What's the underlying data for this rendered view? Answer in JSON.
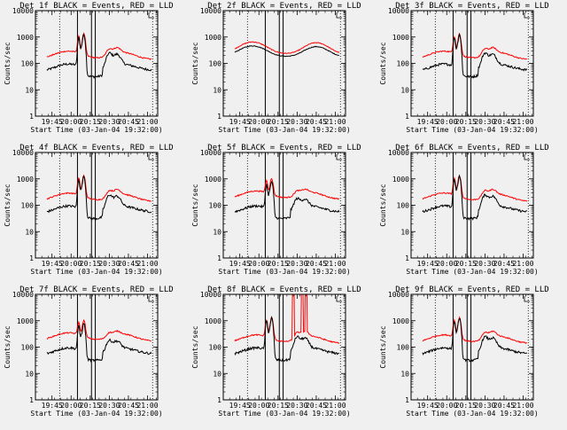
{
  "chart_data": {
    "type": "line",
    "layout": "3x3 grid",
    "x_ticks": [
      "19:45",
      "20:00",
      "20:15",
      "20:30",
      "20:45",
      "21:00"
    ],
    "x_range": [
      "19:32",
      "21:08"
    ],
    "xlabel": "Start Time (03-Jan-04 19:32:00)",
    "ylabel": "Counts/sec",
    "y_scale": "log",
    "y_range": [
      1,
      10000
    ],
    "y_ticks": [
      "1",
      "10",
      "100",
      "1000",
      "10000"
    ],
    "series_colors": {
      "events": "#000000",
      "lld": "#ff0000"
    },
    "markers": {
      "dotted_lines": [
        "19:51",
        "21:04"
      ],
      "solid_lines": [
        "20:05",
        "20:16",
        "20:19"
      ]
    },
    "panels": [
      {
        "title": "Det 1f BLACK = Events, RED = LLD",
        "variant": "flare"
      },
      {
        "title": "Det 2f BLACK = Events, RED = LLD",
        "variant": "smooth"
      },
      {
        "title": "Det 3f BLACK = Events, RED = LLD",
        "variant": "flare"
      },
      {
        "title": "Det 4f BLACK = Events, RED = LLD",
        "variant": "flare"
      },
      {
        "title": "Det 5f BLACK = Events, RED = LLD",
        "variant": "flare_low"
      },
      {
        "title": "Det 6f BLACK = Events, RED = LLD",
        "variant": "flare"
      },
      {
        "title": "Det 7f BLACK = Events, RED = LLD",
        "variant": "flare_low"
      },
      {
        "title": "Det 8f BLACK = Events, RED = LLD",
        "variant": "spikes"
      },
      {
        "title": "Det 9f BLACK = Events, RED = LLD",
        "variant": "flare"
      }
    ]
  }
}
